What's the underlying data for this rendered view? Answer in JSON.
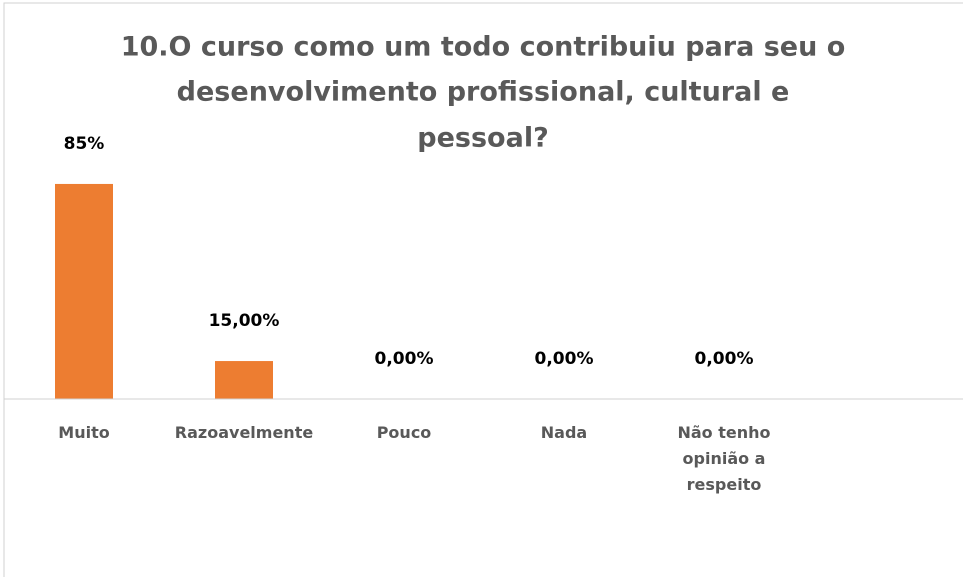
{
  "chart_data": {
    "type": "bar",
    "title": [
      "10.O curso como um todo contribuiu para seu o",
      "desenvolvimento profissional, cultural  e",
      "pessoal?"
    ],
    "categories": [
      "Muito",
      "Razoavelmente",
      "Pouco",
      "Nada",
      "Não tenho opinião a respeito"
    ],
    "values": [
      85,
      15,
      0,
      0,
      0
    ],
    "value_labels": [
      "85%",
      "15,00%",
      "0,00%",
      "0,00%",
      "0,00%"
    ],
    "color": "#ed7d31",
    "ylim": [
      0,
      100
    ]
  }
}
